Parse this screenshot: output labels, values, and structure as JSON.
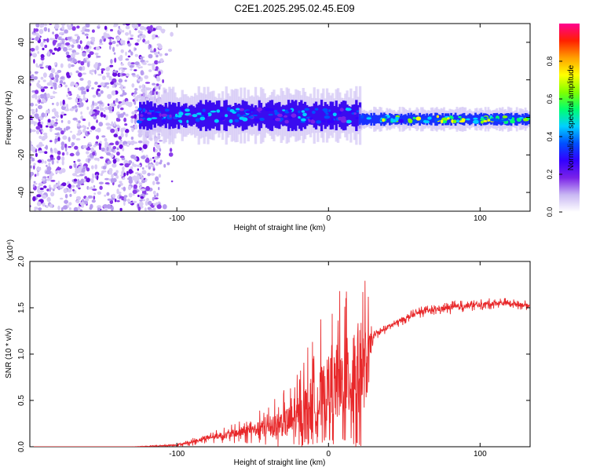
{
  "title": "C2E1.2025.295.02.45.E09",
  "chart_data": [
    {
      "type": "heatmap",
      "xlabel": "Height of straight line (km)",
      "ylabel": "Frequency (Hz)",
      "xlim": [
        -197,
        133
      ],
      "ylim": [
        -50,
        50
      ],
      "xticks": [
        -100,
        0,
        100
      ],
      "yticks": [
        -40,
        -20,
        0,
        20,
        40
      ],
      "colorbar": {
        "label": "Normalized spectral amplitude",
        "range": [
          0,
          1
        ],
        "ticks": [
          0.0,
          0.2,
          0.4,
          0.6,
          0.8
        ],
        "colors": [
          "#ffffff",
          "#c9b8f3",
          "#7a22e8",
          "#3300ff",
          "#0050ff",
          "#00d0ff",
          "#00ff70",
          "#80ff00",
          "#ffff00",
          "#ffa000",
          "#ff2000",
          "#ff0090"
        ]
      },
      "features": {
        "noise_region_x": [
          -197,
          -110
        ],
        "band_segments": [
          {
            "x0": -125,
            "x1": 20,
            "center_hz": 1,
            "halfwidth_hz": 7,
            "amplitude": 0.35
          },
          {
            "x0": 20,
            "x1": 133,
            "center_hz": -1,
            "halfwidth_hz": 3,
            "amplitude": 0.55
          }
        ]
      }
    },
    {
      "type": "line",
      "xlabel": "Height of straight line (km)",
      "ylabel": "SNR (10 * v/v)",
      "multiplier": "(x10⁴)",
      "xlim": [
        -197,
        133
      ],
      "ylim": [
        0,
        2
      ],
      "xticks": [
        -100,
        0,
        100
      ],
      "yticks": [
        "0.0",
        "0.5",
        "1.0",
        "1.5",
        "2.0"
      ],
      "series": [
        {
          "name": "SNR",
          "color": "#e8282a",
          "x": [
            -197,
            -130,
            -110,
            -100,
            -90,
            -80,
            -70,
            -60,
            -50,
            -40,
            -30,
            -20,
            -15,
            -10,
            -5,
            0,
            5,
            10,
            15,
            20,
            25,
            28,
            30,
            40,
            50,
            60,
            70,
            80,
            90,
            100,
            110,
            120,
            133
          ],
          "y": [
            0.0,
            0.0,
            0.01,
            0.02,
            0.05,
            0.1,
            0.12,
            0.15,
            0.18,
            0.22,
            0.25,
            0.3,
            0.4,
            0.45,
            0.5,
            0.6,
            0.65,
            0.7,
            0.75,
            0.8,
            0.85,
            1.1,
            1.2,
            1.3,
            1.38,
            1.45,
            1.48,
            1.5,
            1.52,
            1.53,
            1.55,
            1.55,
            1.52
          ],
          "spread": [
            0.0,
            0.0,
            0.01,
            0.02,
            0.04,
            0.06,
            0.08,
            0.12,
            0.15,
            0.25,
            0.35,
            0.5,
            0.7,
            0.8,
            0.9,
            0.9,
            1.0,
            1.1,
            1.2,
            1.2,
            1.0,
            0.3,
            0.05,
            0.06,
            0.06,
            0.06,
            0.06,
            0.07,
            0.07,
            0.06,
            0.06,
            0.06,
            0.05
          ]
        }
      ]
    }
  ]
}
